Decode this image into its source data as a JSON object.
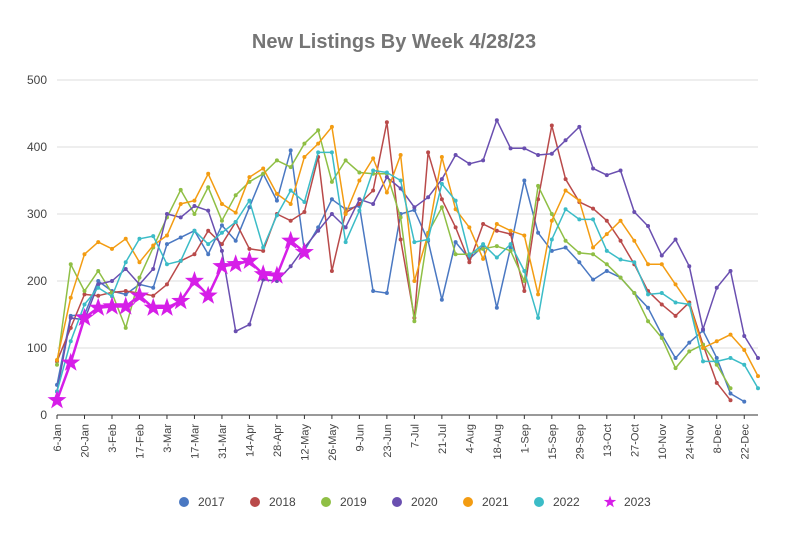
{
  "chart_data": {
    "type": "line",
    "title": "New Listings By Week 4/28/23",
    "xlabel": "",
    "ylabel": "",
    "ylim": [
      0,
      500
    ],
    "yticks": [
      0,
      100,
      200,
      300,
      400,
      500
    ],
    "grid": true,
    "legend_position": "bottom",
    "x_tick_labels": [
      "6-Jan",
      "20-Jan",
      "3-Feb",
      "17-Feb",
      "3-Mar",
      "17-Mar",
      "31-Mar",
      "14-Apr",
      "28-Apr",
      "12-May",
      "26-May",
      "9-Jun",
      "23-Jun",
      "7-Jul",
      "21-Jul",
      "4-Aug",
      "18-Aug",
      "1-Sep",
      "15-Sep",
      "29-Sep",
      "13-Oct",
      "27-Oct",
      "10-Nov",
      "24-Nov",
      "8-Dec",
      "22-Dec"
    ],
    "series": [
      {
        "name": "2017",
        "color": "#4a78c2",
        "marker": "circle",
        "values": [
          45,
          148,
          150,
          200,
          185,
          180,
          195,
          190,
          255,
          265,
          275,
          240,
          283,
          260,
          310,
          360,
          320,
          395,
          245,
          280,
          322,
          307,
          312,
          185,
          182,
          300,
          306,
          260,
          172,
          258,
          233,
          252,
          160,
          250,
          350,
          272,
          245,
          250,
          228,
          202,
          215,
          205,
          182,
          160,
          120,
          85,
          108,
          126,
          85,
          32,
          20
        ]
      },
      {
        "name": "2018",
        "color": "#b94a4a",
        "marker": "circle",
        "values": [
          80,
          130,
          180,
          178,
          183,
          185,
          182,
          178,
          195,
          230,
          240,
          275,
          255,
          288,
          248,
          245,
          300,
          290,
          303,
          385,
          215,
          302,
          315,
          335,
          437,
          262,
          145,
          392,
          322,
          280,
          228,
          285,
          275,
          270,
          185,
          322,
          432,
          352,
          318,
          308,
          290,
          260,
          225,
          185,
          165,
          148,
          168,
          105,
          48,
          22
        ]
      },
      {
        "name": "2019",
        "color": "#8fbf45",
        "marker": "circle",
        "values": [
          75,
          225,
          185,
          215,
          182,
          130,
          205,
          250,
          295,
          336,
          300,
          340,
          290,
          328,
          348,
          360,
          380,
          370,
          405,
          425,
          348,
          380,
          362,
          360,
          360,
          295,
          140,
          272,
          310,
          240,
          240,
          248,
          252,
          245,
          200,
          342,
          300,
          260,
          242,
          240,
          225,
          205,
          182,
          140,
          115,
          70,
          95,
          105,
          75,
          40
        ]
      },
      {
        "name": "2020",
        "color": "#6a4fb0",
        "marker": "circle",
        "values": [
          35,
          145,
          142,
          195,
          200,
          218,
          195,
          218,
          300,
          295,
          312,
          305,
          245,
          125,
          135,
          202,
          200,
          222,
          250,
          275,
          300,
          280,
          322,
          315,
          355,
          338,
          310,
          325,
          352,
          388,
          375,
          380,
          440,
          398,
          398,
          388,
          390,
          410,
          430,
          368,
          358,
          365,
          303,
          282,
          238,
          262,
          222,
          128,
          190,
          215,
          118,
          85
        ]
      },
      {
        "name": "2021",
        "color": "#f39c12",
        "marker": "circle",
        "values": [
          82,
          175,
          240,
          258,
          248,
          263,
          228,
          253,
          268,
          315,
          320,
          360,
          315,
          302,
          355,
          368,
          330,
          315,
          385,
          405,
          430,
          300,
          350,
          383,
          332,
          388,
          200,
          270,
          385,
          307,
          280,
          233,
          285,
          275,
          268,
          180,
          290,
          335,
          320,
          250,
          270,
          290,
          260,
          225,
          225,
          195,
          165,
          100,
          110,
          120,
          97,
          58
        ]
      },
      {
        "name": "2022",
        "color": "#3bbcc7",
        "marker": "circle",
        "values": [
          35,
          110,
          165,
          190,
          177,
          228,
          263,
          267,
          225,
          230,
          275,
          255,
          272,
          288,
          320,
          250,
          298,
          335,
          318,
          392,
          392,
          258,
          305,
          365,
          362,
          350,
          258,
          262,
          345,
          320,
          238,
          255,
          235,
          255,
          215,
          145,
          262,
          307,
          292,
          292,
          245,
          232,
          228,
          180,
          182,
          168,
          165,
          80,
          80,
          85,
          75,
          40
        ]
      },
      {
        "name": "2023",
        "color": "#d61ee8",
        "marker": "star",
        "values": [
          22,
          78,
          145,
          160,
          162,
          162,
          178,
          160,
          160,
          170,
          200,
          178,
          222,
          225,
          230,
          210,
          208,
          260,
          243
        ]
      }
    ]
  }
}
